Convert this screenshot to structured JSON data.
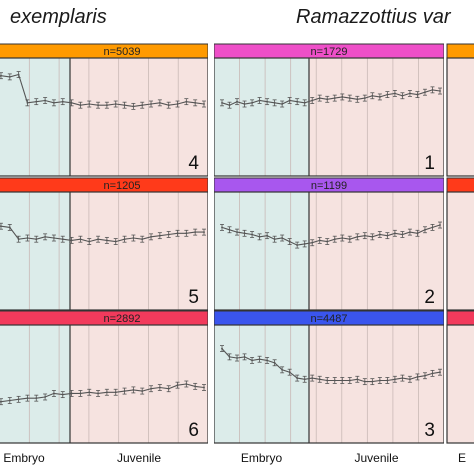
{
  "header": {
    "left_species": "exemplaris",
    "right_species": "Ramazzottius var"
  },
  "colors": {
    "embryo_bg": "#dcecea",
    "juvenile_bg": "#f6e3e0",
    "line": "#555555"
  },
  "chart_data": [
    {
      "type": "line",
      "column": "left",
      "row": 1,
      "header": "n=5039",
      "header_color": "#ff9a00",
      "cluster": "4",
      "xlabels": {
        "embryo": "",
        "juvenile": ""
      },
      "values": [
        0.78,
        0.8,
        0.79,
        0.82,
        0.8,
        0.81,
        0.85,
        0.84,
        0.86,
        0.62,
        0.63,
        0.64,
        0.62,
        0.63,
        0.62,
        0.6,
        0.61,
        0.6,
        0.6,
        0.61,
        0.6,
        0.59,
        0.6,
        0.61,
        0.62,
        0.6,
        0.61,
        0.63,
        0.62,
        0.61
      ]
    },
    {
      "type": "line",
      "column": "right",
      "row": 1,
      "header": "n=1729",
      "header_color": "#ee4fc8",
      "cluster": "1",
      "xlabels": {
        "embryo": "",
        "juvenile": ""
      },
      "values": [
        0.62,
        0.6,
        0.63,
        0.61,
        0.62,
        0.64,
        0.63,
        0.62,
        0.61,
        0.64,
        0.63,
        0.62,
        0.64,
        0.66,
        0.65,
        0.66,
        0.67,
        0.66,
        0.65,
        0.66,
        0.68,
        0.67,
        0.69,
        0.7,
        0.68,
        0.7,
        0.69,
        0.71,
        0.73,
        0.72
      ]
    },
    {
      "type": "line",
      "column": "left",
      "row": 2,
      "header": "n=1205",
      "header_color": "#ff3a1a",
      "cluster": "5",
      "xlabels": {
        "embryo": "",
        "juvenile": ""
      },
      "values": [
        0.66,
        0.67,
        0.65,
        0.68,
        0.66,
        0.72,
        0.71,
        0.7,
        0.6,
        0.61,
        0.6,
        0.62,
        0.61,
        0.6,
        0.59,
        0.6,
        0.58,
        0.6,
        0.59,
        0.58,
        0.6,
        0.61,
        0.6,
        0.62,
        0.63,
        0.64,
        0.65,
        0.65,
        0.66,
        0.66
      ]
    },
    {
      "type": "line",
      "column": "right",
      "row": 2,
      "header": "n=1199",
      "header_color": "#a857ee",
      "cluster": "2",
      "xlabels": {
        "embryo": "",
        "juvenile": ""
      },
      "values": [
        0.7,
        0.68,
        0.66,
        0.65,
        0.64,
        0.62,
        0.63,
        0.6,
        0.61,
        0.58,
        0.55,
        0.56,
        0.57,
        0.59,
        0.58,
        0.6,
        0.61,
        0.6,
        0.62,
        0.63,
        0.62,
        0.64,
        0.63,
        0.65,
        0.64,
        0.66,
        0.65,
        0.68,
        0.7,
        0.72
      ]
    },
    {
      "type": "line",
      "column": "left",
      "row": 3,
      "header": "n=2892",
      "header_color": "#f23a5c",
      "cluster": "6",
      "xlabels": {
        "embryo": "Embryo",
        "juvenile": "Juvenile"
      },
      "values": [
        0.3,
        0.31,
        0.32,
        0.33,
        0.32,
        0.34,
        0.35,
        0.36,
        0.37,
        0.38,
        0.38,
        0.39,
        0.42,
        0.41,
        0.42,
        0.42,
        0.43,
        0.42,
        0.43,
        0.43,
        0.44,
        0.45,
        0.44,
        0.46,
        0.47,
        0.46,
        0.49,
        0.5,
        0.48,
        0.47
      ]
    },
    {
      "type": "line",
      "column": "right",
      "row": 3,
      "header": "n=4487",
      "header_color": "#3a55ee",
      "cluster": "3",
      "xlabels": {
        "embryo": "Embryo",
        "juvenile": "Juvenile"
      },
      "values": [
        0.8,
        0.73,
        0.72,
        0.73,
        0.7,
        0.71,
        0.7,
        0.68,
        0.62,
        0.6,
        0.55,
        0.54,
        0.55,
        0.54,
        0.53,
        0.53,
        0.53,
        0.53,
        0.54,
        0.52,
        0.52,
        0.53,
        0.53,
        0.54,
        0.55,
        0.54,
        0.56,
        0.57,
        0.59,
        0.6
      ]
    }
  ]
}
